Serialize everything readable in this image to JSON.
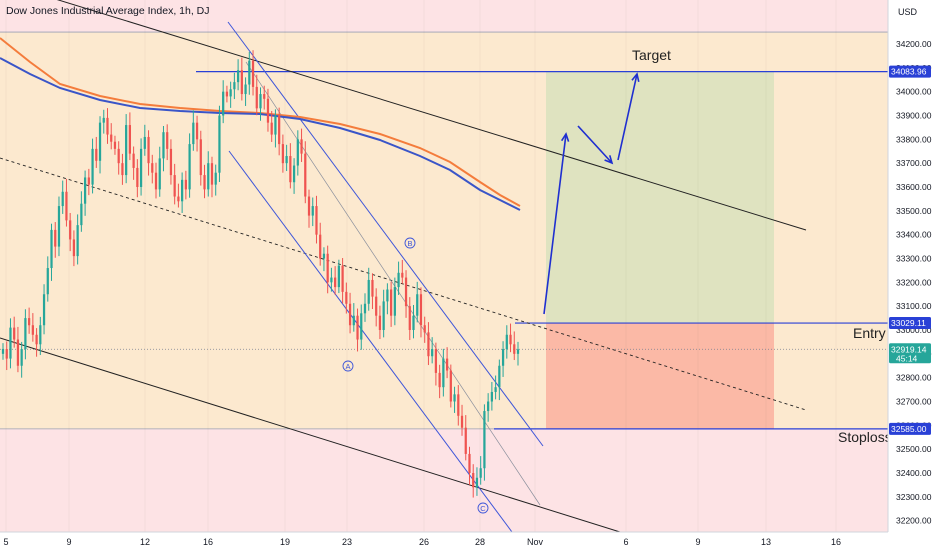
{
  "header": {
    "title": "Dow Jones Industrial Average Index, 1h, DJ"
  },
  "currency": "USD",
  "annotations": {
    "target": "Target",
    "entry": "Entry",
    "stoploss": "Stoploss",
    "wave_a": "A",
    "wave_b": "B",
    "wave_c": "C"
  },
  "colors": {
    "zone_band": "#fce9cf",
    "outer_band": "#fde3e5",
    "profit_zone": "#dfe3c0",
    "loss_zone": "#fbb9a6",
    "level_line": "#2940d6",
    "up_candle": "#26a69a",
    "down_candle": "#ef5350",
    "ma_orange": "#f47c3c",
    "ma_blue": "#3a55c8",
    "channel_blue": "#3e56d9",
    "trend_black": "#222222"
  },
  "chart_data": {
    "type": "candlestick",
    "xaxis": {
      "labels": [
        "5",
        "9",
        "12",
        "16",
        "19",
        "23",
        "26",
        "28",
        "Nov",
        "6",
        "9",
        "13",
        "16"
      ]
    },
    "yaxis": {
      "range": [
        32150,
        34300
      ],
      "ticks": [
        32200,
        32300,
        32400,
        32500,
        32600,
        32700,
        32800,
        32900,
        33000,
        33100,
        33200,
        33300,
        33400,
        33500,
        33600,
        33700,
        33800,
        33900,
        34000,
        34100,
        34200
      ]
    },
    "levels": {
      "target": 34083.96,
      "entry": 33029.11,
      "stoploss": 32585.0
    },
    "last_price": {
      "value": 32919.14,
      "countdown": "45:14"
    },
    "upper_band_top": 34250,
    "lower_band_top": 32585
  }
}
